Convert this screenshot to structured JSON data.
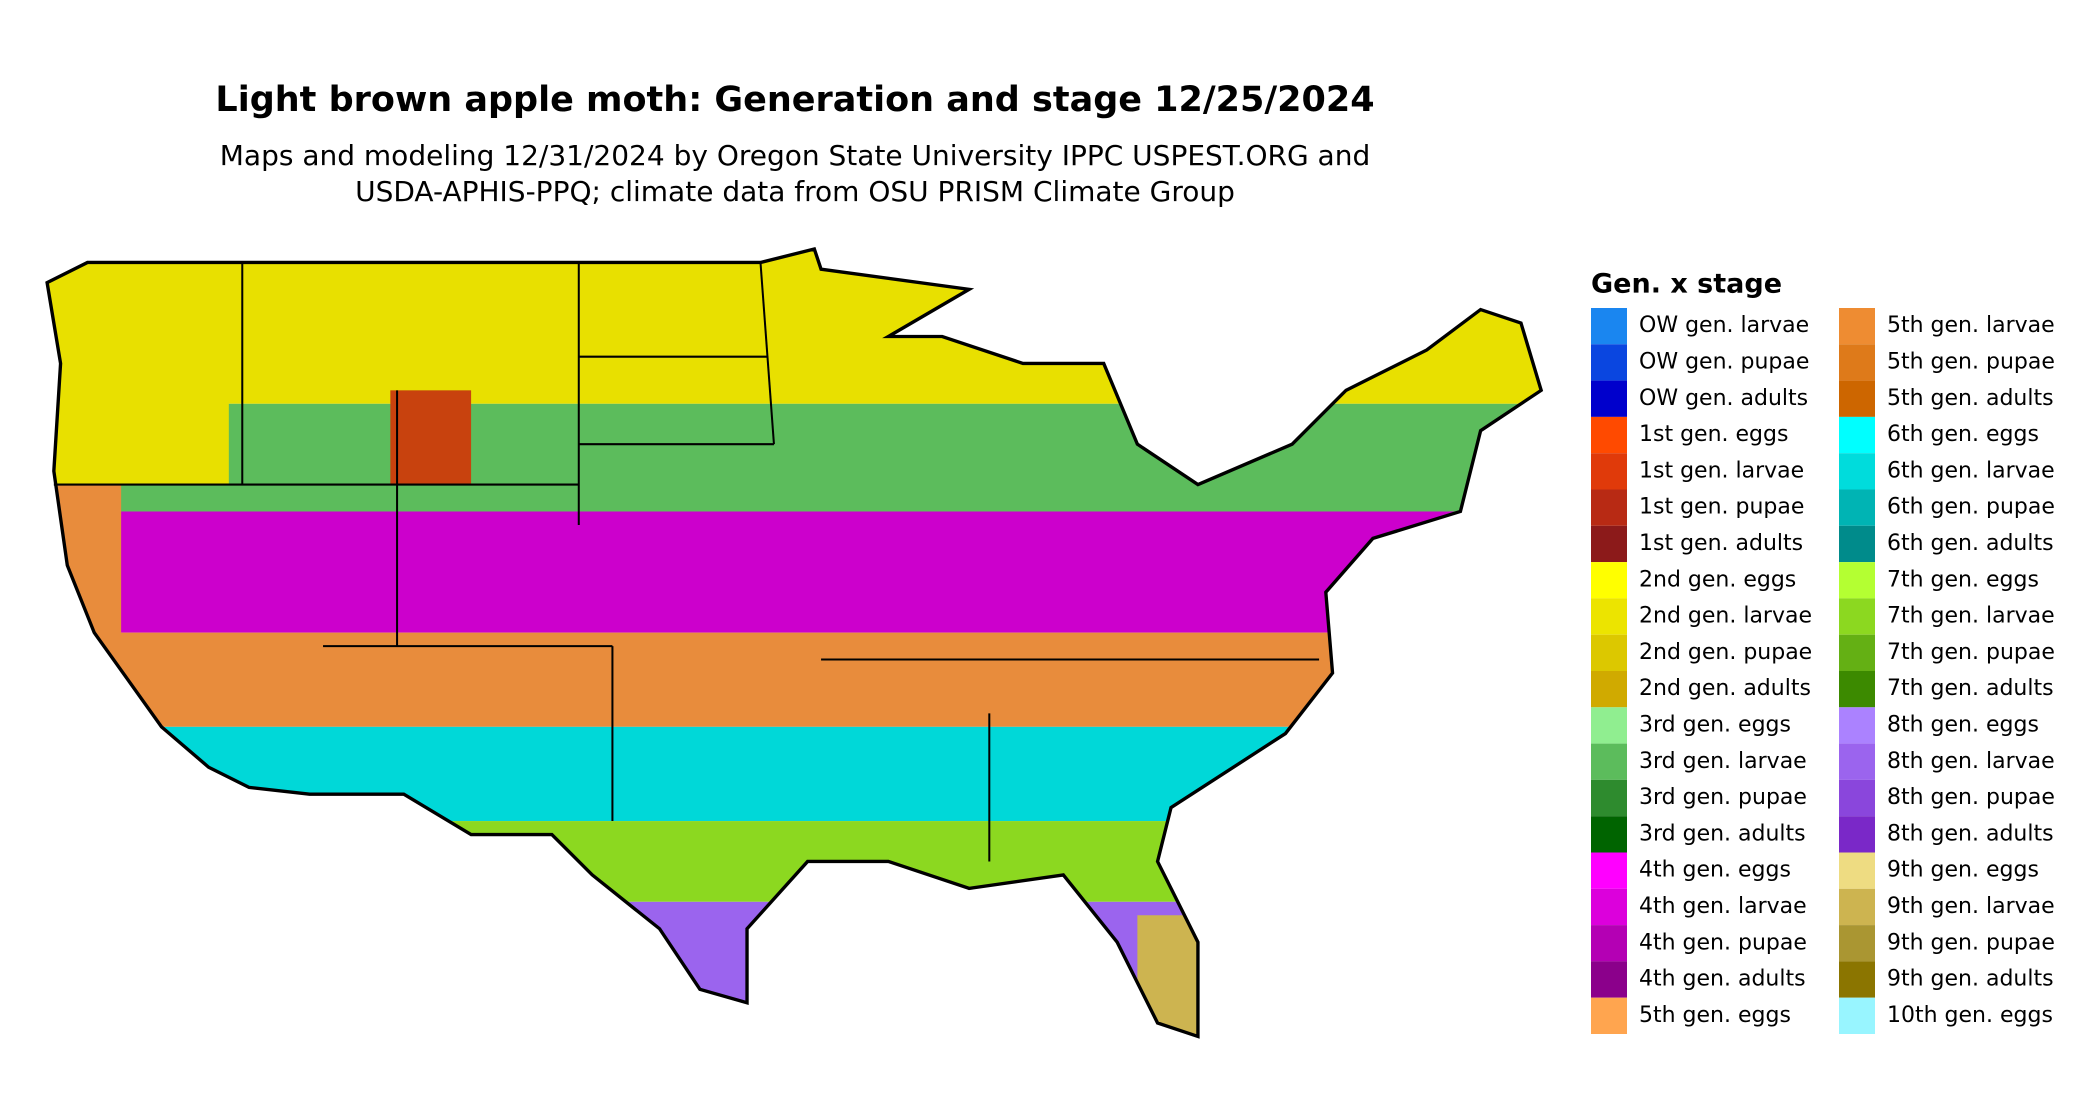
{
  "title": "Light brown apple moth: Generation and stage 12/25/2024",
  "subtitle": [
    "Maps and modeling 12/31/2024 by Oregon State University IPPC USPEST.ORG and",
    "USDA-APHIS-PPQ; climate data from OSU PRISM Climate Group"
  ],
  "legend": {
    "title": "Gen. x stage",
    "items": [
      {
        "label": "OW gen. larvae",
        "color": "#1a86f0"
      },
      {
        "label": "OW gen. pupae",
        "color": "#0a46e0"
      },
      {
        "label": "OW gen. adults",
        "color": "#0000cc"
      },
      {
        "label": "1st gen. eggs",
        "color": "#ff4a00"
      },
      {
        "label": "1st gen. larvae",
        "color": "#e03a0a"
      },
      {
        "label": "1st gen. pupae",
        "color": "#b82a14"
      },
      {
        "label": "1st gen. adults",
        "color": "#8c1a1a"
      },
      {
        "label": "2nd gen. eggs",
        "color": "#ffff00"
      },
      {
        "label": "2nd gen. larvae",
        "color": "#ece400"
      },
      {
        "label": "2nd gen. pupae",
        "color": "#dcc800"
      },
      {
        "label": "2nd gen. adults",
        "color": "#d0aa00"
      },
      {
        "label": "3rd gen. eggs",
        "color": "#90ee90"
      },
      {
        "label": "3rd gen. larvae",
        "color": "#5cbc5c"
      },
      {
        "label": "3rd gen. pupae",
        "color": "#2e8b2e"
      },
      {
        "label": "3rd gen. adults",
        "color": "#006400"
      },
      {
        "label": "4th gen. eggs",
        "color": "#ff00ff"
      },
      {
        "label": "4th gen. larvae",
        "color": "#dc00dc"
      },
      {
        "label": "4th gen. pupae",
        "color": "#b400b4"
      },
      {
        "label": "4th gen. adults",
        "color": "#8b008b"
      },
      {
        "label": "5th gen. eggs",
        "color": "#ffa54f"
      },
      {
        "label": "5th gen. larvae",
        "color": "#ee8c32"
      },
      {
        "label": "5th gen. pupae",
        "color": "#de7a1a"
      },
      {
        "label": "5th gen. adults",
        "color": "#cd6600"
      },
      {
        "label": "6th gen. eggs",
        "color": "#00ffff"
      },
      {
        "label": "6th gen. larvae",
        "color": "#00dcdc"
      },
      {
        "label": "6th gen. pupae",
        "color": "#00b4b4"
      },
      {
        "label": "6th gen. adults",
        "color": "#008b8b"
      },
      {
        "label": "7th gen. eggs",
        "color": "#b4ff32"
      },
      {
        "label": "7th gen. larvae",
        "color": "#8cd820"
      },
      {
        "label": "7th gen. pupae",
        "color": "#64b014"
      },
      {
        "label": "7th gen. adults",
        "color": "#3c8a00"
      },
      {
        "label": "8th gen. eggs",
        "color": "#ab82ff"
      },
      {
        "label": "8th gen. larvae",
        "color": "#9b64ee"
      },
      {
        "label": "8th gen. pupae",
        "color": "#8a46dc"
      },
      {
        "label": "8th gen. adults",
        "color": "#7a28c8"
      },
      {
        "label": "9th gen. eggs",
        "color": "#eedc82"
      },
      {
        "label": "9th gen. larvae",
        "color": "#cdb450"
      },
      {
        "label": "9th gen. pupae",
        "color": "#aa9632"
      },
      {
        "label": "9th gen. adults",
        "color": "#8b7500"
      },
      {
        "label": "10th gen. eggs",
        "color": "#98f5ff"
      }
    ]
  }
}
